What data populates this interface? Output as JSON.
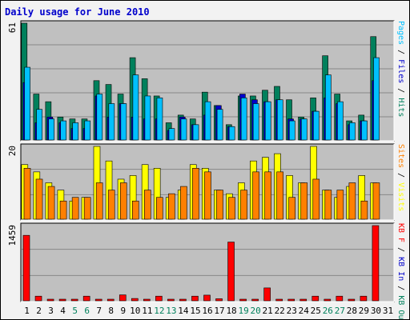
{
  "page": {
    "title": "Daily usage for June 2010"
  },
  "colors": {
    "pages": "#00c0ff",
    "files": "#0000cc",
    "hits": "#00805c",
    "visits": "#ffff00",
    "sites": "#ff8000",
    "kb": "#ff0000",
    "kb_in": "#0000cc",
    "kb_out": "#00805c",
    "panel_bg": "#c0c0c0",
    "frame_bg": "#f2f2f2",
    "day_black": "#000000",
    "day_green": "#00805c"
  },
  "chart_data": [
    {
      "type": "bar",
      "x": [
        1,
        2,
        3,
        4,
        5,
        6,
        7,
        8,
        9,
        10,
        11,
        12,
        13,
        14,
        15,
        16,
        17,
        18,
        19,
        20,
        21,
        22,
        23,
        24,
        25,
        26,
        27,
        28,
        29,
        30,
        31
      ],
      "x_labels": [
        "1",
        "2",
        "3",
        "4",
        "5",
        "6",
        "7",
        "8",
        "9",
        "10",
        "11",
        "12",
        "13",
        "14",
        "15",
        "16",
        "17",
        "18",
        "19",
        "20",
        "21",
        "22",
        "23",
        "24",
        "25",
        "26",
        "27",
        "28",
        "29",
        "30",
        "31"
      ],
      "weekend_days": [
        5,
        6,
        12,
        13,
        19,
        20,
        26,
        27
      ],
      "ylim": [
        0,
        61
      ],
      "ytick_label": "61",
      "series_labels": [
        "Pages",
        "/",
        "Files",
        "/",
        "Hits"
      ],
      "series": [
        {
          "name": "Hits",
          "values": [
            61,
            24,
            20,
            12,
            11,
            11,
            31,
            29,
            24,
            43,
            32,
            23,
            9,
            13,
            11,
            25,
            18,
            8,
            23,
            23,
            26,
            28,
            21,
            12,
            22,
            44,
            24,
            10,
            13,
            54,
            0
          ]
        },
        {
          "name": "Files",
          "values": [
            30,
            9,
            12,
            9,
            6,
            6,
            23,
            12,
            19,
            12,
            11,
            11,
            5,
            12,
            8,
            13,
            18,
            7,
            24,
            21,
            20,
            21,
            11,
            11,
            15,
            22,
            19,
            8,
            10,
            31,
            0
          ]
        },
        {
          "name": "Pages",
          "values": [
            38,
            16,
            11,
            10,
            9,
            10,
            24,
            19,
            19,
            34,
            23,
            22,
            6,
            11,
            8,
            20,
            16,
            7,
            22,
            19,
            20,
            21,
            10,
            11,
            15,
            34,
            20,
            9,
            10,
            43,
            0
          ]
        }
      ]
    },
    {
      "type": "bar",
      "x": [
        1,
        2,
        3,
        4,
        5,
        6,
        7,
        8,
        9,
        10,
        11,
        12,
        13,
        14,
        15,
        16,
        17,
        18,
        19,
        20,
        21,
        22,
        23,
        24,
        25,
        26,
        27,
        28,
        29,
        30,
        31
      ],
      "ylim": [
        0,
        20
      ],
      "ytick_label": "20",
      "series_labels": [
        "Sites",
        "/",
        "Visits"
      ],
      "series": [
        {
          "name": "Visits",
          "values": [
            15,
            13,
            10,
            8,
            5,
            6,
            20,
            16,
            11,
            12,
            15,
            14,
            6,
            8,
            15,
            14,
            8,
            7,
            10,
            16,
            17,
            18,
            12,
            10,
            20,
            8,
            6,
            9,
            12,
            10,
            0
          ]
        },
        {
          "name": "Sites",
          "values": [
            14,
            11,
            9,
            5,
            6,
            6,
            10,
            8,
            10,
            5,
            8,
            6,
            7,
            9,
            14,
            13,
            8,
            6,
            8,
            13,
            13,
            13,
            6,
            10,
            11,
            8,
            8,
            10,
            5,
            10,
            0
          ]
        }
      ]
    },
    {
      "type": "bar",
      "x": [
        1,
        2,
        3,
        4,
        5,
        6,
        7,
        8,
        9,
        10,
        11,
        12,
        13,
        14,
        15,
        16,
        17,
        18,
        19,
        20,
        21,
        22,
        23,
        24,
        25,
        26,
        27,
        28,
        29,
        30,
        31
      ],
      "ylim": [
        0,
        1459
      ],
      "ytick_label": "1459",
      "series_labels": [
        "KB F",
        "/",
        "KB In",
        "/",
        "KB Out"
      ],
      "series": [
        {
          "name": "KB F",
          "values": [
            1270,
            90,
            15,
            15,
            15,
            90,
            25,
            15,
            115,
            45,
            15,
            90,
            15,
            20,
            90,
            110,
            40,
            1140,
            15,
            15,
            250,
            15,
            15,
            15,
            90,
            30,
            90,
            30,
            90,
            1459,
            0
          ]
        }
      ]
    }
  ]
}
